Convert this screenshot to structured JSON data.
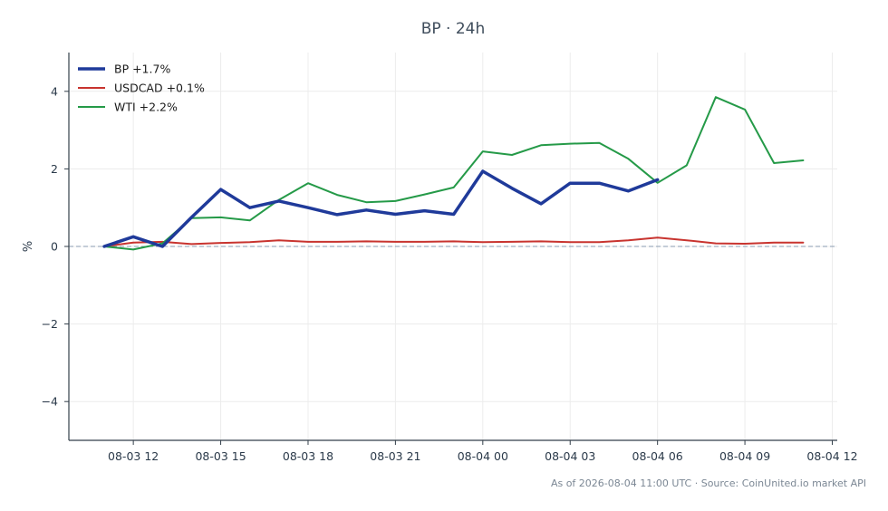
{
  "chart_data": {
    "type": "line",
    "title": "BP · 24h",
    "ylabel": "%",
    "xlabel": "",
    "x": [
      "08-03 11:00",
      "08-03 12:00",
      "08-03 13:00",
      "08-03 14:00",
      "08-03 15:00",
      "08-03 16:00",
      "08-03 17:00",
      "08-03 18:00",
      "08-03 19:00",
      "08-03 20:00",
      "08-03 21:00",
      "08-03 22:00",
      "08-03 23:00",
      "08-04 00:00",
      "08-04 01:00",
      "08-04 02:00",
      "08-04 03:00",
      "08-04 04:00",
      "08-04 05:00",
      "08-04 06:00",
      "08-04 07:00",
      "08-04 08:00",
      "08-04 09:00",
      "08-04 10:00",
      "08-04 11:00"
    ],
    "x_ticks": [
      "08-03 12",
      "08-03 15",
      "08-03 18",
      "08-03 21",
      "08-04 00",
      "08-04 03",
      "08-04 06",
      "08-04 09",
      "08-04 12"
    ],
    "y_ticks": [
      "4",
      "2",
      "0",
      "−2",
      "−4"
    ],
    "ylim": [
      -5,
      5
    ],
    "grid": true,
    "zero_line": true,
    "legend_position": "top-left",
    "series": [
      {
        "name": "BP +1.7%",
        "color": "#1f3a9a",
        "values": [
          0.0,
          0.25,
          0.0,
          0.75,
          1.47,
          1.0,
          1.17,
          1.0,
          0.82,
          0.94,
          0.83,
          0.92,
          0.83,
          1.94,
          1.5,
          1.1,
          1.63,
          1.63,
          1.43,
          1.72,
          null,
          null,
          null,
          null,
          null
        ]
      },
      {
        "name": "USDCAD +0.1%",
        "color": "#c8342f",
        "values": [
          0.0,
          0.1,
          0.12,
          0.06,
          0.09,
          0.11,
          0.16,
          0.12,
          0.12,
          0.13,
          0.12,
          0.12,
          0.13,
          0.11,
          0.12,
          0.13,
          0.11,
          0.11,
          0.16,
          0.23,
          0.16,
          0.08,
          0.07,
          0.1,
          0.1
        ]
      },
      {
        "name": "WTI +2.2%",
        "color": "#259a48",
        "values": [
          0.0,
          -0.08,
          0.08,
          0.73,
          0.75,
          0.67,
          1.2,
          1.63,
          1.33,
          1.14,
          1.17,
          1.34,
          1.52,
          2.45,
          2.36,
          2.61,
          2.65,
          2.67,
          2.26,
          1.64,
          2.09,
          3.85,
          3.53,
          2.15,
          2.22
        ]
      }
    ],
    "footer": "As of 2026-08-04 11:00 UTC · Source: CoinUnited.io market API"
  }
}
